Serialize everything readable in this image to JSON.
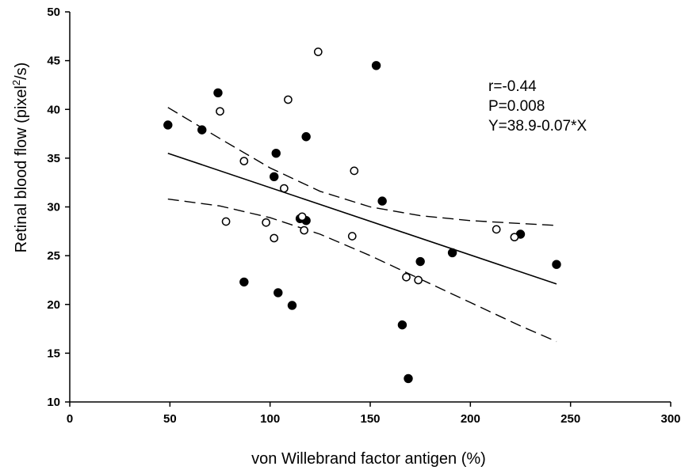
{
  "chart_data": {
    "type": "scatter",
    "xlabel": "von Willebrand factor antigen (%)",
    "ylabel_main": "Retinal blood flow (pixel",
    "ylabel_sup": "2",
    "ylabel_tail": "/s)",
    "xlim": [
      0,
      300
    ],
    "ylim": [
      10,
      50
    ],
    "x_ticks": [
      0,
      50,
      100,
      150,
      200,
      250,
      300
    ],
    "y_ticks": [
      10,
      15,
      20,
      25,
      30,
      35,
      40,
      45,
      50
    ],
    "grid": false,
    "annotations": [
      "r=-0.44",
      "P=0.008",
      "Y=38.9-0.07*X"
    ],
    "series": [
      {
        "marker": "filled",
        "points": [
          [
            49,
            38.4
          ],
          [
            66,
            37.9
          ],
          [
            74,
            41.7
          ],
          [
            87,
            22.3
          ],
          [
            102,
            33.1
          ],
          [
            103,
            35.5
          ],
          [
            104,
            21.2
          ],
          [
            111,
            19.9
          ],
          [
            115,
            28.8
          ],
          [
            118,
            28.6
          ],
          [
            118,
            37.2
          ],
          [
            153,
            44.5
          ],
          [
            156,
            30.6
          ],
          [
            166,
            17.9
          ],
          [
            169,
            12.4
          ],
          [
            175,
            24.4
          ],
          [
            191,
            25.3
          ],
          [
            225,
            27.2
          ],
          [
            243,
            24.1
          ]
        ]
      },
      {
        "marker": "open",
        "points": [
          [
            75,
            39.8
          ],
          [
            78,
            28.5
          ],
          [
            87,
            34.7
          ],
          [
            98,
            28.4
          ],
          [
            102,
            26.8
          ],
          [
            107,
            31.9
          ],
          [
            109,
            41.0
          ],
          [
            116,
            29.0
          ],
          [
            117,
            27.6
          ],
          [
            124,
            45.9
          ],
          [
            141,
            27.0
          ],
          [
            142,
            33.7
          ],
          [
            168,
            22.8
          ],
          [
            174,
            22.5
          ],
          [
            213,
            27.7
          ],
          [
            222,
            26.9
          ]
        ]
      }
    ],
    "regression": {
      "x": [
        49,
        243
      ],
      "y": [
        35.5,
        22.1
      ]
    },
    "confidence_band": {
      "upper": [
        [
          49,
          40.2
        ],
        [
          75,
          37.0
        ],
        [
          100,
          34.0
        ],
        [
          125,
          31.6
        ],
        [
          150,
          30.0
        ],
        [
          175,
          29.1
        ],
        [
          200,
          28.6
        ],
        [
          225,
          28.3
        ],
        [
          243,
          28.1
        ]
      ],
      "lower": [
        [
          49,
          30.8
        ],
        [
          75,
          30.1
        ],
        [
          100,
          28.9
        ],
        [
          125,
          27.2
        ],
        [
          150,
          25.0
        ],
        [
          175,
          22.6
        ],
        [
          200,
          20.2
        ],
        [
          225,
          17.8
        ],
        [
          243,
          16.2
        ]
      ]
    }
  }
}
